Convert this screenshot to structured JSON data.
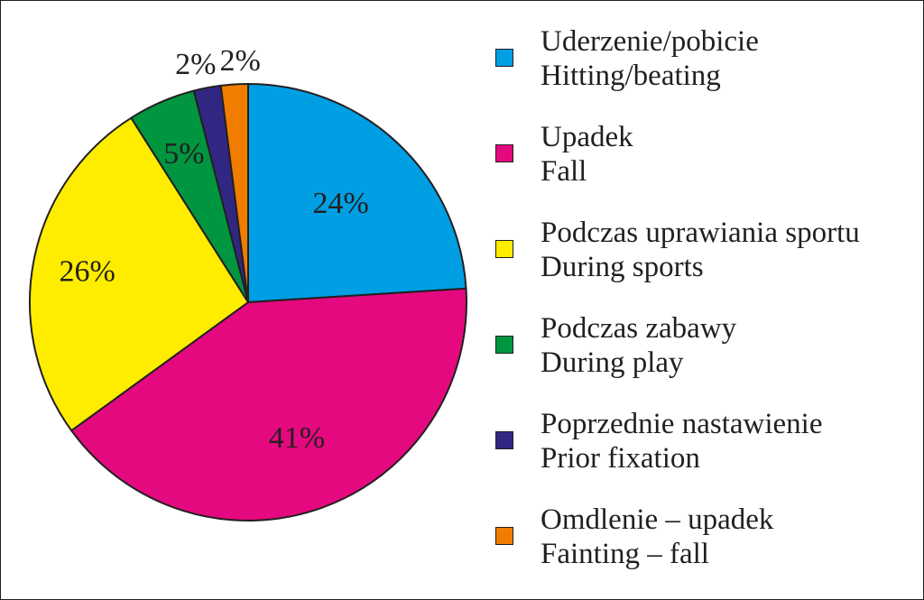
{
  "chart_data": {
    "type": "pie",
    "slices": [
      {
        "label_pl": "Uderzenie/pobicie",
        "label_en": "Hitting/beating",
        "value": 24,
        "value_label": "24%",
        "color": "#009fe3"
      },
      {
        "label_pl": "Upadek",
        "label_en": "Fall",
        "value": 41,
        "value_label": "41%",
        "color": "#e5097f"
      },
      {
        "label_pl": "Podczas uprawiania sportu",
        "label_en": "During sports",
        "value": 26,
        "value_label": "26%",
        "color": "#ffed00"
      },
      {
        "label_pl": "Podczas zabawy",
        "label_en": "During play",
        "value": 5,
        "value_label": "5%",
        "color": "#009640"
      },
      {
        "label_pl": "Poprzednie nastawienie",
        "label_en": "Prior fixation",
        "value": 2,
        "value_label": "2%",
        "color": "#312783"
      },
      {
        "label_pl": "Omdlenie – upadek",
        "label_en": "Fainting – fall",
        "value": 2,
        "value_label": "2%",
        "color": "#f07d00"
      }
    ],
    "legend_position": "right"
  }
}
